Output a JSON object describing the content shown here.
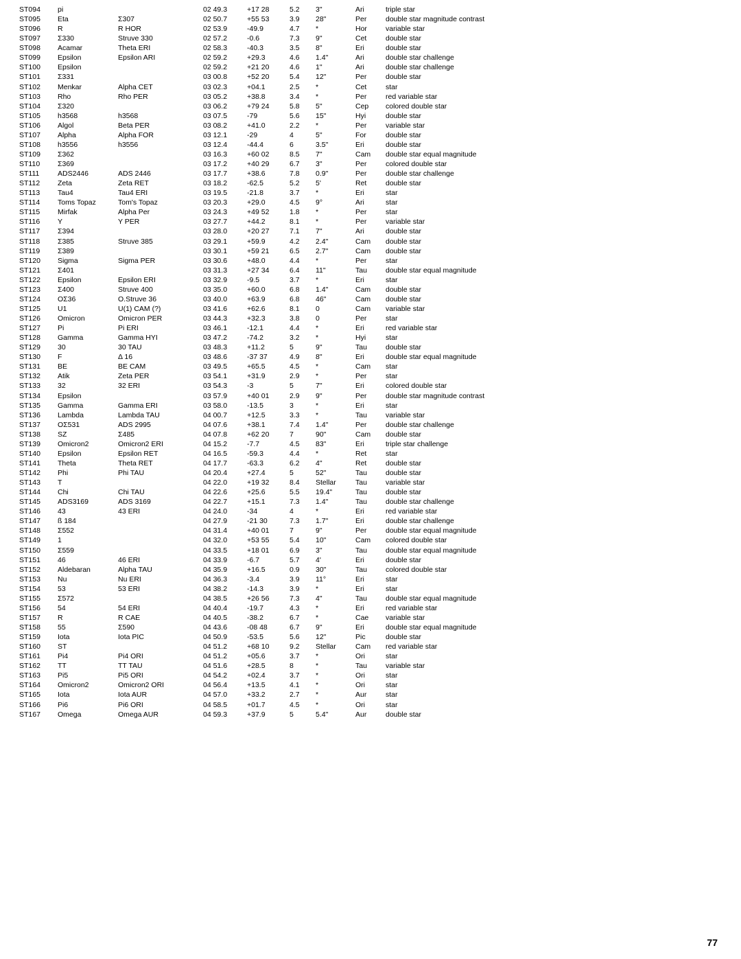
{
  "pagenum": "77",
  "rows": [
    [
      "ST094",
      "pi",
      "",
      "02 49.3",
      "+17 28",
      "5.2",
      "3\"",
      "Ari",
      "triple star"
    ],
    [
      "ST095",
      "Eta",
      "Σ307",
      "02 50.7",
      "+55 53",
      "3.9",
      "28\"",
      "Per",
      "double star magnitude contrast"
    ],
    [
      "ST096",
      "R",
      "R HOR",
      "02 53.9",
      "-49.9",
      "4.7",
      "*",
      "Hor",
      "variable star"
    ],
    [
      "ST097",
      "Σ330",
      "Struve 330",
      "02 57.2",
      "-0.6",
      "7.3",
      "9\"",
      "Cet",
      "double star"
    ],
    [
      "ST098",
      "Acamar",
      "Theta ERI",
      "02 58.3",
      "-40.3",
      "3.5",
      "8\"",
      "Eri",
      "double star"
    ],
    [
      "ST099",
      "Epsilon",
      "Epsilon ARI",
      "02 59.2",
      "+29.3",
      "4.6",
      "1.4\"",
      "Ari",
      "double star challenge"
    ],
    [
      "ST100",
      "Epsilon",
      "",
      "02 59.2",
      "+21 20",
      "4.6",
      "1\"",
      "Ari",
      "double star challenge"
    ],
    [
      "ST101",
      "Σ331",
      "",
      "03 00.8",
      "+52 20",
      "5.4",
      "12\"",
      "Per",
      "double star"
    ],
    [
      "ST102",
      "Menkar",
      "Alpha CET",
      "03 02.3",
      "+04.1",
      "2.5",
      "*",
      "Cet",
      "star"
    ],
    [
      "ST103",
      "Rho",
      "Rho PER",
      "03 05.2",
      "+38.8",
      "3.4",
      "*",
      "Per",
      "red variable star"
    ],
    [
      "ST104",
      "Σ320",
      "",
      "03 06.2",
      "+79 24",
      "5.8",
      "5\"",
      "Cep",
      "colored double star"
    ],
    [
      "ST105",
      "h3568",
      "h3568",
      "03 07.5",
      "-79",
      "5.6",
      "15\"",
      "Hyi",
      "double star"
    ],
    [
      "ST106",
      "Algol",
      "Beta PER",
      "03 08.2",
      "+41.0",
      "2.2",
      "*",
      "Per",
      "variable star"
    ],
    [
      "ST107",
      "Alpha",
      "Alpha FOR",
      "03 12.1",
      "-29",
      "4",
      "5\"",
      "For",
      "double star"
    ],
    [
      "ST108",
      "h3556",
      "h3556",
      "03 12.4",
      "-44.4",
      "6",
      "3.5\"",
      "Eri",
      "double star"
    ],
    [
      "ST109",
      "Σ362",
      "",
      "03 16.3",
      "+60 02",
      "8.5",
      "7\"",
      "Cam",
      "double star equal magnitude"
    ],
    [
      "ST110",
      "Σ369",
      "",
      "03 17.2",
      "+40 29",
      "6.7",
      "3\"",
      "Per",
      "colored double star"
    ],
    [
      "ST111",
      "ADS2446",
      "ADS 2446",
      "03 17.7",
      "+38.6",
      "7.8",
      "0.9\"",
      "Per",
      "double star challenge"
    ],
    [
      "ST112",
      "Zeta",
      "Zeta RET",
      "03 18.2",
      "-62.5",
      "5.2",
      "5'",
      "Ret",
      "double star"
    ],
    [
      "ST113",
      "Tau4",
      "Tau4 ERI",
      "03 19.5",
      "-21.8",
      "3.7",
      "*",
      "Eri",
      "star"
    ],
    [
      "ST114",
      "Toms Topaz",
      "Tom's Topaz",
      "03 20.3",
      "+29.0",
      "4.5",
      "9°",
      "Ari",
      "star"
    ],
    [
      "ST115",
      "Mirfak",
      "Alpha Per",
      "03 24.3",
      "+49 52",
      "1.8",
      "*",
      "Per",
      "star"
    ],
    [
      "ST116",
      "Y",
      "Y PER",
      "03 27.7",
      "+44.2",
      "8.1",
      "*",
      "Per",
      "variable star"
    ],
    [
      "ST117",
      "Σ394",
      "",
      "03 28.0",
      "+20 27",
      "7.1",
      "7\"",
      "Ari",
      "double star"
    ],
    [
      "ST118",
      "Σ385",
      "Struve 385",
      "03 29.1",
      "+59.9",
      "4.2",
      "2.4\"",
      "Cam",
      "double star"
    ],
    [
      "ST119",
      "Σ389",
      "",
      "03 30.1",
      "+59 21",
      "6.5",
      "2.7\"",
      "Cam",
      "double star"
    ],
    [
      "ST120",
      "Sigma",
      "Sigma PER",
      "03 30.6",
      "+48.0",
      "4.4",
      "*",
      "Per",
      "star"
    ],
    [
      "ST121",
      "Σ401",
      "",
      "03 31.3",
      "+27 34",
      "6.4",
      "11\"",
      "Tau",
      "double star equal magnitude"
    ],
    [
      "ST122",
      "Epsilon",
      "Epsilon ERI",
      "03 32.9",
      "-9.5",
      "3.7",
      "*",
      "Eri",
      "star"
    ],
    [
      "ST123",
      "Σ400",
      "Struve 400",
      "03 35.0",
      "+60.0",
      "6.8",
      "1.4\"",
      "Cam",
      "double star"
    ],
    [
      "ST124",
      "OΣ36",
      "O.Struve 36",
      "03 40.0",
      "+63.9",
      "6.8",
      "46\"",
      "Cam",
      "double star"
    ],
    [
      "ST125",
      "U1",
      "U(1) CAM (?)",
      "03 41.6",
      "+62.6",
      "8.1",
      "0",
      "Cam",
      "variable star"
    ],
    [
      "ST126",
      "Omicron",
      "Omicron PER",
      "03 44.3",
      "+32.3",
      "3.8",
      "0",
      "Per",
      "star"
    ],
    [
      "ST127",
      "Pi",
      "Pi ERI",
      "03 46.1",
      "-12.1",
      "4.4",
      "*",
      "Eri",
      "red variable star"
    ],
    [
      "ST128",
      "Gamma",
      "Gamma HYI",
      "03 47.2",
      "-74.2",
      "3.2",
      "*",
      "Hyi",
      "star"
    ],
    [
      "ST129",
      "30",
      "30 TAU",
      "03 48.3",
      "+11.2",
      "5",
      "9\"",
      "Tau",
      "double star"
    ],
    [
      "ST130",
      "F",
      "Δ 16",
      "03 48.6",
      "-37 37",
      "4.9",
      "8\"",
      "Eri",
      "double star equal magnitude"
    ],
    [
      "ST131",
      "BE",
      "BE CAM",
      "03 49.5",
      "+65.5",
      "4.5",
      "*",
      "Cam",
      "star"
    ],
    [
      "ST132",
      "Atik",
      "Zeta PER",
      "03 54.1",
      "+31.9",
      "2.9",
      "*",
      "Per",
      "star"
    ],
    [
      "ST133",
      "32",
      "32 ERI",
      "03 54.3",
      "-3",
      "5",
      "7\"",
      "Eri",
      "colored double star"
    ],
    [
      "ST134",
      "Epsilon",
      "",
      "03 57.9",
      "+40 01",
      "2.9",
      "9\"",
      "Per",
      "double star magnitude contrast"
    ],
    [
      "ST135",
      "Gamma",
      "Gamma ERI",
      "03 58.0",
      "-13.5",
      "3",
      "*",
      "Eri",
      "star"
    ],
    [
      "ST136",
      "Lambda",
      "Lambda TAU",
      "04 00.7",
      "+12.5",
      "3.3",
      "*",
      "Tau",
      "variable star"
    ],
    [
      "ST137",
      "OΣ531",
      "ADS 2995",
      "04 07.6",
      "+38.1",
      "7.4",
      "1.4\"",
      "Per",
      "double star challenge"
    ],
    [
      "ST138",
      "SZ",
      "Σ485",
      "04 07.8",
      "+62 20",
      "7",
      "90\"",
      "Cam",
      "double star"
    ],
    [
      "ST139",
      "Omicron2",
      "Omicron2 ERI",
      "04 15.2",
      "-7.7",
      "4.5",
      "83\"",
      "Eri",
      "triple star challenge"
    ],
    [
      "ST140",
      "Epsilon",
      "Epsilon RET",
      "04 16.5",
      "-59.3",
      "4.4",
      "*",
      "Ret",
      "star"
    ],
    [
      "ST141",
      "Theta",
      "Theta RET",
      "04 17.7",
      "-63.3",
      "6.2",
      "4\"",
      "Ret",
      "double star"
    ],
    [
      "ST142",
      "Phi",
      "Phi TAU",
      "04 20.4",
      "+27.4",
      "5",
      "52\"",
      "Tau",
      "double star"
    ],
    [
      "ST143",
      "T",
      "",
      "04 22.0",
      "+19 32",
      "8.4",
      "Stellar",
      "Tau",
      "variable star"
    ],
    [
      "ST144",
      "Chi",
      "Chi TAU",
      "04 22.6",
      "+25.6",
      "5.5",
      "19.4\"",
      "Tau",
      "double star"
    ],
    [
      "ST145",
      "ADS3169",
      "ADS 3169",
      "04 22.7",
      "+15.1",
      "7.3",
      "1.4\"",
      "Tau",
      "double star challenge"
    ],
    [
      "ST146",
      "43",
      "43 ERI",
      "04 24.0",
      "-34",
      "4",
      "*",
      "Eri",
      "red variable star"
    ],
    [
      "ST147",
      "ß 184",
      "",
      "04 27.9",
      "-21 30",
      "7.3",
      "1.7\"",
      "Eri",
      "double star challenge"
    ],
    [
      "ST148",
      "Σ552",
      "",
      "04 31.4",
      "+40 01",
      "7",
      "9\"",
      "Per",
      "double star equal magnitude"
    ],
    [
      "ST149",
      "1",
      "",
      "04 32.0",
      "+53 55",
      "5.4",
      "10\"",
      "Cam",
      "colored double star"
    ],
    [
      "ST150",
      "Σ559",
      "",
      "04 33.5",
      "+18 01",
      "6.9",
      "3\"",
      "Tau",
      "double star equal magnitude"
    ],
    [
      "ST151",
      "46",
      "46 ERI",
      "04 33.9",
      "-6.7",
      "5.7",
      "4'",
      "Eri",
      "double star"
    ],
    [
      "ST152",
      "Aldebaran",
      "Alpha TAU",
      "04 35.9",
      "+16.5",
      "0.9",
      "30\"",
      "Tau",
      "colored double star"
    ],
    [
      "ST153",
      "Nu",
      "Nu ERI",
      "04 36.3",
      "-3.4",
      "3.9",
      "11°",
      "Eri",
      "star"
    ],
    [
      "ST154",
      "53",
      "53 ERI",
      "04 38.2",
      "-14.3",
      "3.9",
      "*",
      "Eri",
      "star"
    ],
    [
      "ST155",
      "Σ572",
      "",
      "04 38.5",
      "+26 56",
      "7.3",
      "4\"",
      "Tau",
      "double star equal magnitude"
    ],
    [
      "ST156",
      "54",
      "54 ERI",
      "04 40.4",
      "-19.7",
      "4.3",
      "*",
      "Eri",
      "red variable star"
    ],
    [
      "ST157",
      "R",
      "R CAE",
      "04 40.5",
      "-38.2",
      "6.7",
      "*",
      "Cae",
      "variable star"
    ],
    [
      "ST158",
      "55",
      "Σ590",
      "04 43.6",
      "-08 48",
      "6.7",
      "9\"",
      "Eri",
      "double star equal magnitude"
    ],
    [
      "ST159",
      "Iota",
      "Iota PIC",
      "04 50.9",
      "-53.5",
      "5.6",
      "12\"",
      "Pic",
      "double star"
    ],
    [
      "ST160",
      "ST",
      "",
      "04 51.2",
      "+68 10",
      "9.2",
      "Stellar",
      "Cam",
      "red variable star"
    ],
    [
      "ST161",
      "Pi4",
      "Pi4 ORI",
      "04 51.2",
      "+05.6",
      "3.7",
      "*",
      "Ori",
      "star"
    ],
    [
      "ST162",
      "TT",
      "TT TAU",
      "04 51.6",
      "+28.5",
      "8",
      "*",
      "Tau",
      "variable star"
    ],
    [
      "ST163",
      "Pi5",
      "Pi5 ORI",
      "04 54.2",
      "+02.4",
      "3.7",
      "*",
      "Ori",
      "star"
    ],
    [
      "ST164",
      "Omicron2",
      "Omicron2 ORI",
      "04 56.4",
      "+13.5",
      "4.1",
      "*",
      "Ori",
      "star"
    ],
    [
      "ST165",
      "Iota",
      "Iota AUR",
      "04 57.0",
      "+33.2",
      "2.7",
      "*",
      "Aur",
      "star"
    ],
    [
      "ST166",
      "Pi6",
      "Pi6 ORI",
      "04 58.5",
      "+01.7",
      "4.5",
      "*",
      "Ori",
      "star"
    ],
    [
      "ST167",
      "Omega",
      "Omega AUR",
      "04 59.3",
      "+37.9",
      "5",
      "5.4\"",
      "Aur",
      "double star"
    ]
  ]
}
